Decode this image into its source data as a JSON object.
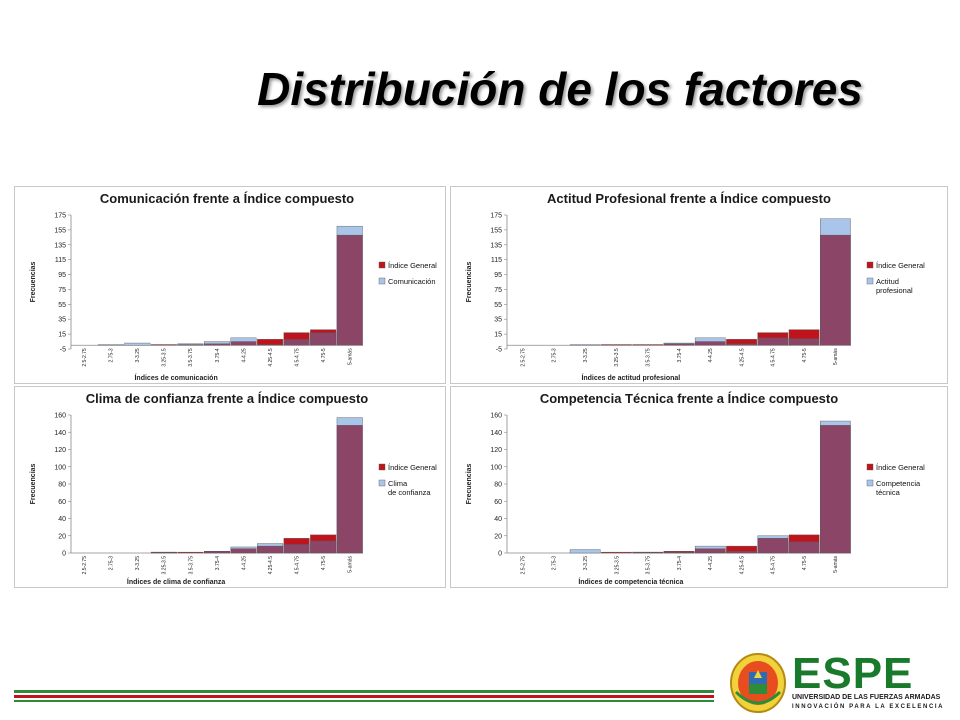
{
  "slide": {
    "title": "Distribución de los factores"
  },
  "colors": {
    "indice_general": "#c0141c",
    "factor": "#a9c6ea",
    "overlap": "#8a4567",
    "panel_border": "#c8c8c8",
    "footer_green": "#2e8b3a",
    "footer_red": "#c0141c"
  },
  "logo": {
    "name": "ESPE",
    "line1": "UNIVERSIDAD DE LAS FUERZAS ARMADAS",
    "line2": "INNOVACIÓN PARA LA EXCELENCIA"
  },
  "chart_data": [
    {
      "type": "bar",
      "title": "Comunicación frente a Índice compuesto",
      "xlabel": "Índices de comunicación",
      "ylabel": "Frecuencias",
      "ylim": [
        -5,
        175
      ],
      "yticks": [
        -5,
        15,
        35,
        55,
        75,
        95,
        115,
        135,
        155,
        175
      ],
      "categories": [
        "2.5-2.75",
        "2.75-3",
        "3-3.25",
        "3.25-3.5",
        "3.5-3.75",
        "3.75-4",
        "4-4.25",
        "4.25-4.5",
        "4.5-4.75",
        "4.75-5",
        "5-amás"
      ],
      "series": [
        {
          "name": "Índice General",
          "values": [
            0,
            0,
            0,
            1,
            1,
            2,
            5,
            8,
            17,
            21,
            148
          ]
        },
        {
          "name": "Comunicación",
          "values": [
            0,
            1,
            3,
            0,
            2,
            5,
            10,
            1,
            8,
            17,
            160
          ]
        }
      ],
      "legend": "right"
    },
    {
      "type": "bar",
      "title": "Actitud Profesional frente a Índice compuesto",
      "xlabel": "Índices de actitud profesional",
      "ylabel": "Frecuencias",
      "ylim": [
        -5,
        175
      ],
      "yticks": [
        -5,
        15,
        35,
        55,
        75,
        95,
        115,
        135,
        155,
        175
      ],
      "categories": [
        "2.5-2.75",
        "2.75-3",
        "3-3.25",
        "3.25-3.5",
        "3.5-3.75",
        "3.75-4",
        "4-4.25",
        "4.25-4.5",
        "4.5-4.75",
        "4.75-5",
        "5-amás"
      ],
      "series": [
        {
          "name": "Índice General",
          "values": [
            0,
            0,
            0,
            1,
            1,
            2,
            5,
            8,
            17,
            21,
            148
          ]
        },
        {
          "name": "Actitud profesional",
          "values": [
            0,
            0,
            1,
            0,
            0,
            3,
            10,
            2,
            10,
            9,
            170
          ]
        }
      ],
      "legend": "right"
    },
    {
      "type": "bar",
      "title": "Clima de confianza frente a Índice compuesto",
      "xlabel": "Índices de clima de confianza",
      "ylabel": "Frecuencias",
      "ylim": [
        0,
        160
      ],
      "yticks": [
        0,
        20,
        40,
        60,
        80,
        100,
        120,
        140,
        160
      ],
      "categories": [
        "2.5-2.75",
        "2.75-3",
        "3-3.25",
        "3.25-3.5",
        "3.5-3.75",
        "3.75-4",
        "4-4.25",
        "4.25-4.5",
        "4.5-4.75",
        "4.75-5",
        "5-amás"
      ],
      "series": [
        {
          "name": "Índice General",
          "values": [
            0,
            0,
            0,
            1,
            1,
            2,
            5,
            8,
            17,
            21,
            148
          ]
        },
        {
          "name": "Clima de confianza",
          "values": [
            0,
            0,
            0,
            1,
            0,
            2,
            7,
            11,
            10,
            14,
            157
          ]
        }
      ],
      "legend": "right"
    },
    {
      "type": "bar",
      "title": "Competencia Técnica frente a Índice compuesto",
      "xlabel": "Índices de competencia técnica",
      "ylabel": "Frecuencias",
      "ylim": [
        0,
        160
      ],
      "yticks": [
        0,
        20,
        40,
        60,
        80,
        100,
        120,
        140,
        160
      ],
      "categories": [
        "2.5-2.75",
        "2.75-3",
        "3-3.25",
        "3.25-3.5",
        "3.5-3.75",
        "3.75-4",
        "4-4.25",
        "4.25-4.5",
        "4.5-4.75",
        "4.75-5",
        "5-amás"
      ],
      "series": [
        {
          "name": "Índice General",
          "values": [
            0,
            0,
            0,
            1,
            1,
            2,
            5,
            8,
            17,
            21,
            148
          ]
        },
        {
          "name": "Competencia técnica",
          "values": [
            0,
            0,
            4,
            0,
            1,
            1,
            8,
            2,
            20,
            13,
            153
          ]
        }
      ],
      "legend": "right"
    }
  ]
}
